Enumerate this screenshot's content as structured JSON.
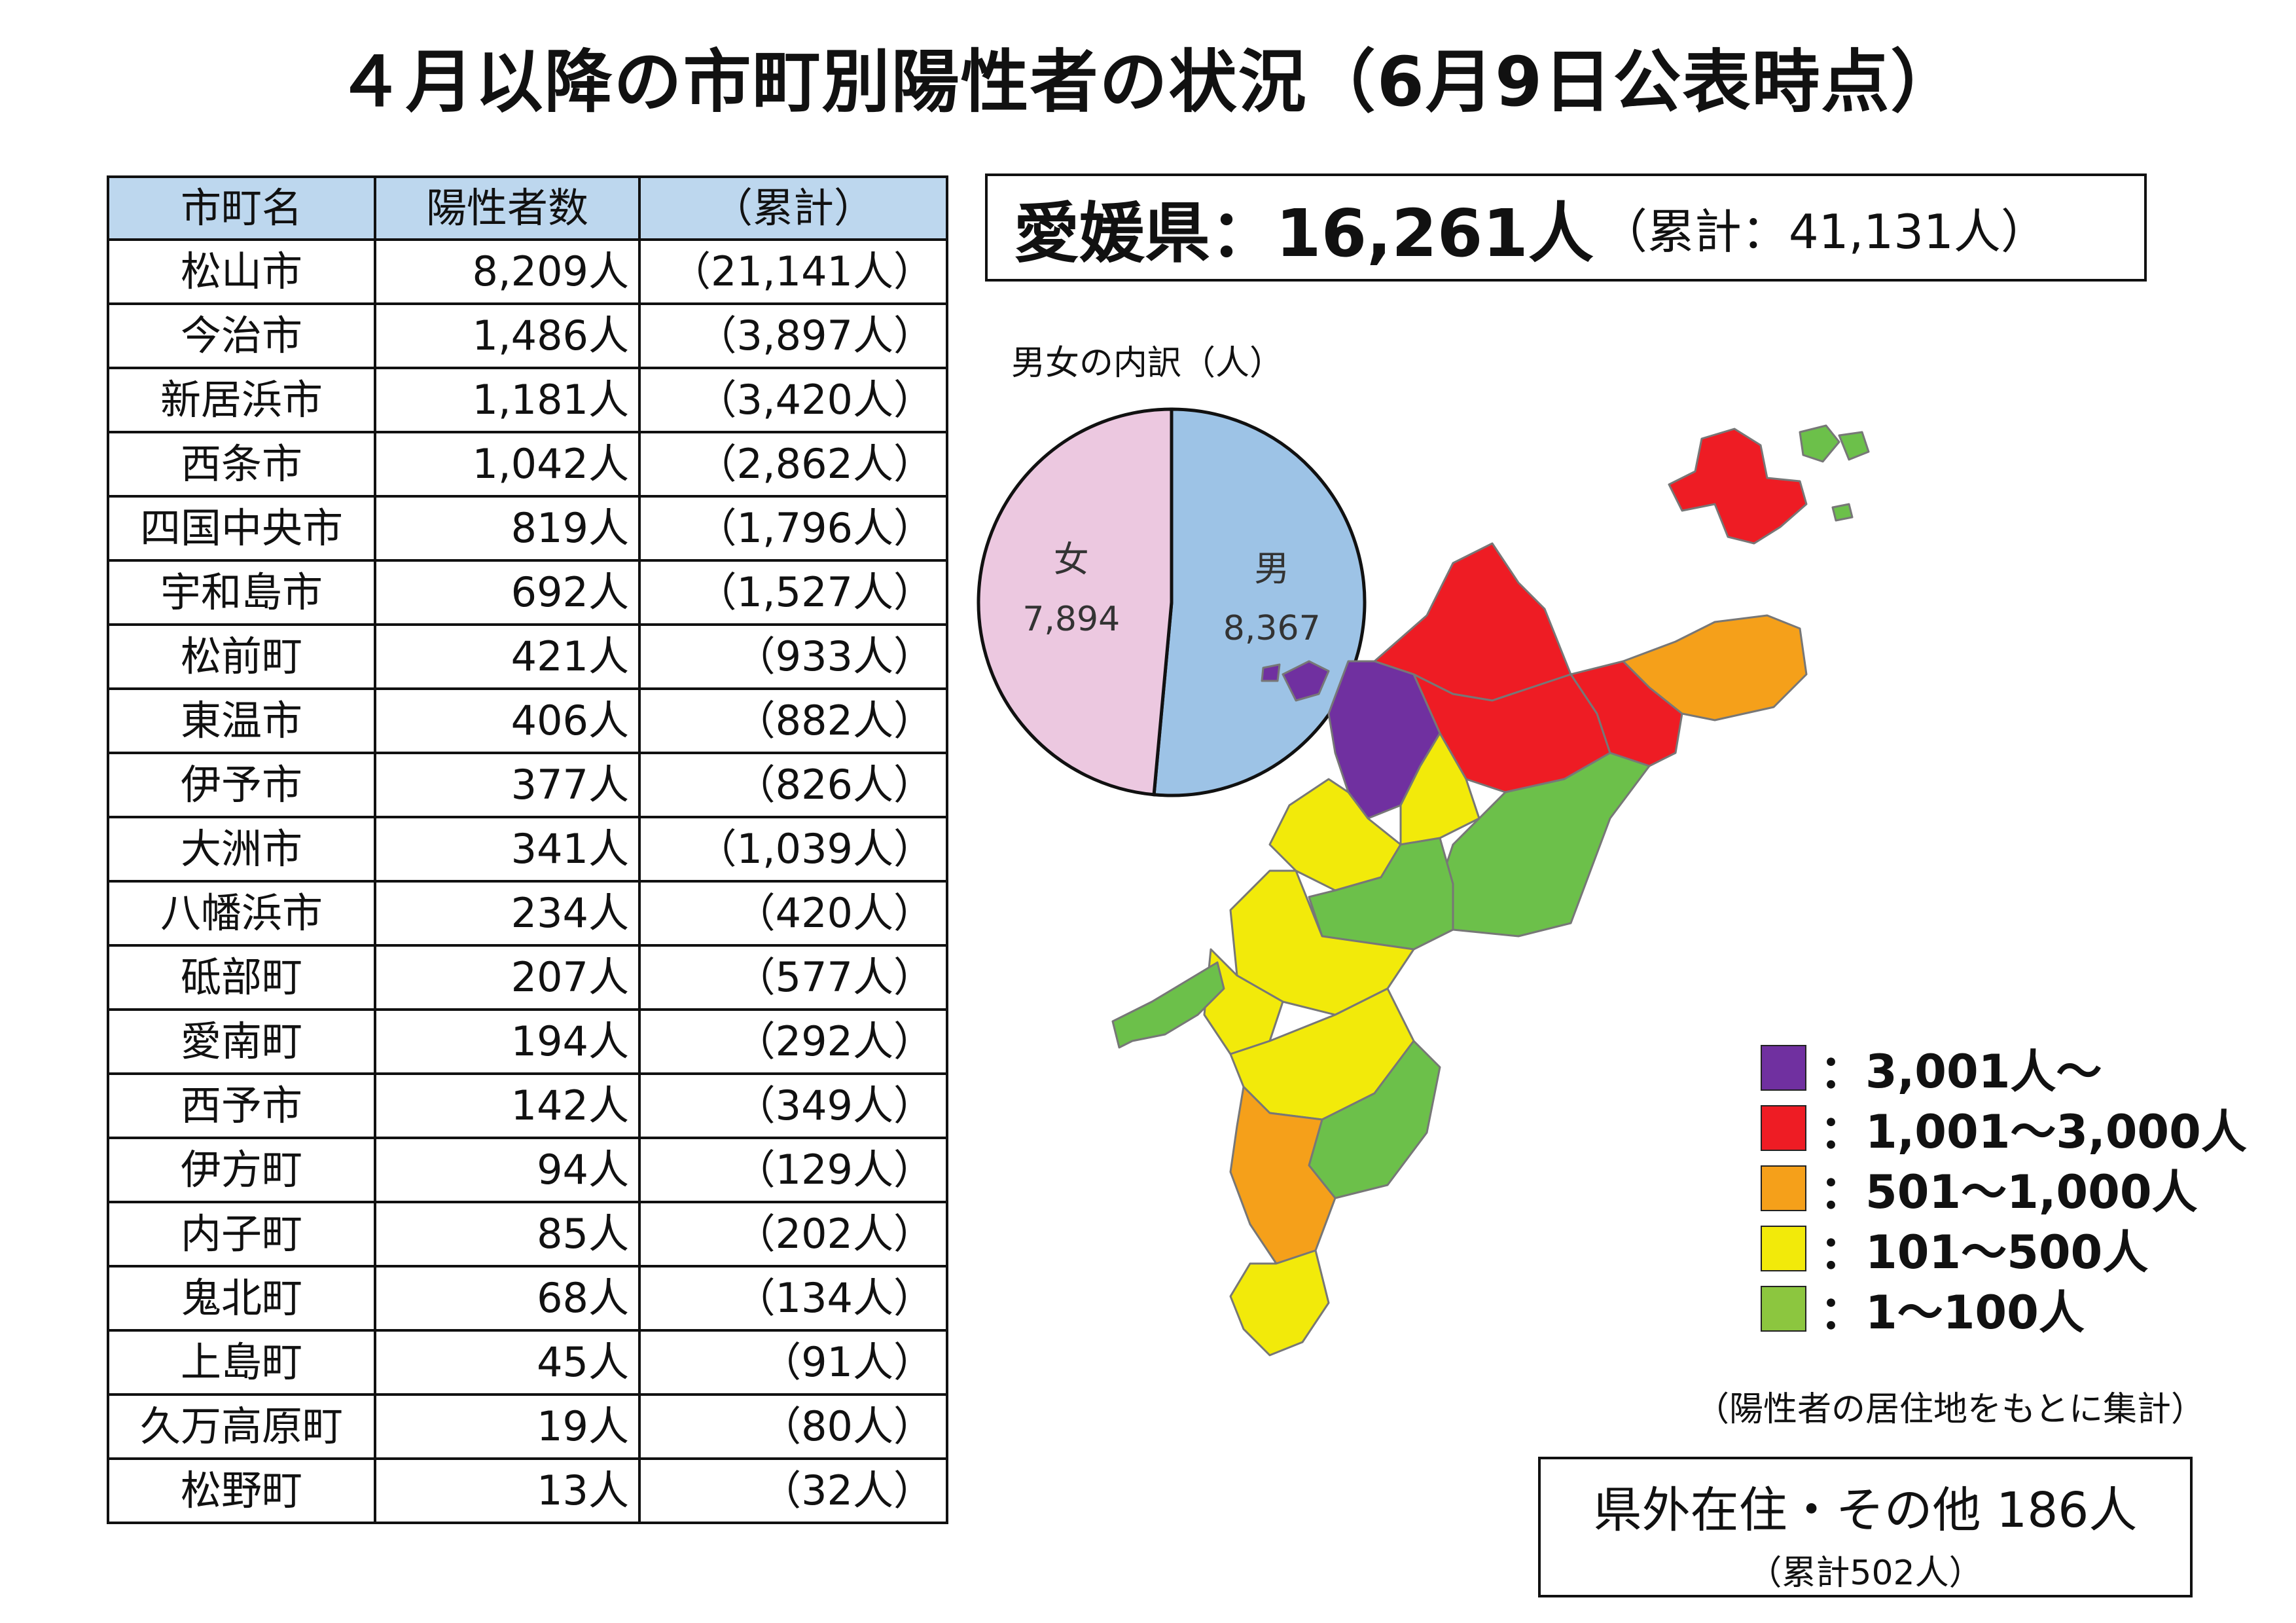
{
  "title": "４月以降の市町別陽性者の状況（6月9日公表時点）",
  "table": {
    "headers": [
      "市町名",
      "陽性者数",
      "（累計）"
    ],
    "rows": [
      {
        "name": "松山市",
        "positives": "8,209人",
        "cumulative": "（21,141人）"
      },
      {
        "name": "今治市",
        "positives": "1,486人",
        "cumulative": "（3,897人）"
      },
      {
        "name": "新居浜市",
        "positives": "1,181人",
        "cumulative": "（3,420人）"
      },
      {
        "name": "西条市",
        "positives": "1,042人",
        "cumulative": "（2,862人）"
      },
      {
        "name": "四国中央市",
        "positives": "819人",
        "cumulative": "（1,796人）"
      },
      {
        "name": "宇和島市",
        "positives": "692人",
        "cumulative": "（1,527人）"
      },
      {
        "name": "松前町",
        "positives": "421人",
        "cumulative": "（933人）"
      },
      {
        "name": "東温市",
        "positives": "406人",
        "cumulative": "（882人）"
      },
      {
        "name": "伊予市",
        "positives": "377人",
        "cumulative": "（826人）"
      },
      {
        "name": "大洲市",
        "positives": "341人",
        "cumulative": "（1,039人）"
      },
      {
        "name": "八幡浜市",
        "positives": "234人",
        "cumulative": "（420人）"
      },
      {
        "name": "砥部町",
        "positives": "207人",
        "cumulative": "（577人）"
      },
      {
        "name": "愛南町",
        "positives": "194人",
        "cumulative": "（292人）"
      },
      {
        "name": "西予市",
        "positives": "142人",
        "cumulative": "（349人）"
      },
      {
        "name": "伊方町",
        "positives": "94人",
        "cumulative": "（129人）"
      },
      {
        "name": "内子町",
        "positives": "85人",
        "cumulative": "（202人）"
      },
      {
        "name": "鬼北町",
        "positives": "68人",
        "cumulative": "（134人）"
      },
      {
        "name": "上島町",
        "positives": "45人",
        "cumulative": "（91人）"
      },
      {
        "name": "久万高原町",
        "positives": "19人",
        "cumulative": "（80人）"
      },
      {
        "name": "松野町",
        "positives": "13人",
        "cumulative": "（32人）"
      }
    ]
  },
  "total": {
    "main": "愛媛県：16,261人",
    "cumulative": "（累計：41,131人）"
  },
  "pie": {
    "label": "男女の内訳（人）",
    "slices": [
      {
        "name": "男",
        "value": 8367,
        "value_text": "8,367",
        "color": "#9dc3e6"
      },
      {
        "name": "女",
        "value": 7894,
        "value_text": "7,894",
        "color": "#ecc8e0"
      }
    ]
  },
  "legend": [
    {
      "color": "#7030a0",
      "label": "：3,001人～"
    },
    {
      "color": "#ee1c24",
      "label": "：1,001～3,000人"
    },
    {
      "color": "#f5a01a",
      "label": "：501～1,000人"
    },
    {
      "color": "#f2ea0a",
      "label": "：101～500人"
    },
    {
      "color": "#8cc63f",
      "label": "：1～100人"
    }
  ],
  "map_colors": {
    "purple": "#7030a0",
    "red": "#ee1c24",
    "orange": "#f5a01a",
    "yellow": "#f2ea0a",
    "green": "#6cc04a"
  },
  "note": "（陽性者の居住地をもとに集計）",
  "outside": {
    "main": "県外在住・その他 186人",
    "cumulative": "（累計502人）"
  }
}
